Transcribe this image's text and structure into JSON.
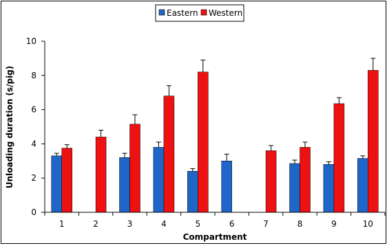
{
  "chart_data": {
    "type": "bar",
    "categories": [
      "1",
      "2",
      "3",
      "4",
      "5",
      "6",
      "7",
      "8",
      "9",
      "10"
    ],
    "series": [
      {
        "name": "Eastern",
        "color": "#1f66c8",
        "values": [
          3.3,
          null,
          3.2,
          3.8,
          2.4,
          3.0,
          null,
          2.85,
          2.8,
          3.15
        ],
        "errors": [
          0.15,
          null,
          0.25,
          0.3,
          0.15,
          0.4,
          null,
          0.2,
          0.15,
          0.15
        ]
      },
      {
        "name": "Western",
        "color": "#ee1111",
        "values": [
          3.75,
          4.4,
          5.15,
          6.8,
          8.2,
          null,
          3.6,
          3.8,
          6.35,
          8.3
        ],
        "errors": [
          0.2,
          0.4,
          0.55,
          0.6,
          0.7,
          null,
          0.3,
          0.3,
          0.35,
          0.7
        ]
      }
    ],
    "xlabel": "Compartment",
    "ylabel": "Unloading duration (s/pig)",
    "ylim": [
      0,
      10
    ],
    "yticks": [
      "0",
      "2",
      "4",
      "6",
      "8",
      "10"
    ],
    "grid": false,
    "legend_position": "top-center"
  }
}
